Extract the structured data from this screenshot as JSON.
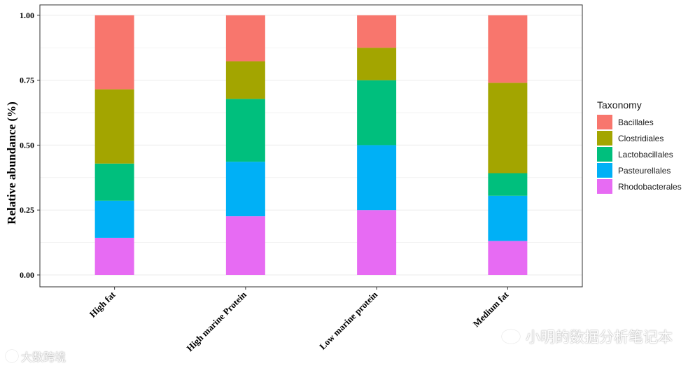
{
  "chart_data": {
    "type": "bar",
    "stacked": true,
    "categories": [
      "High fat",
      "High marine Protein",
      "Low marine protein",
      "Medium fat"
    ],
    "series": [
      {
        "name": "Rhodobacterales",
        "color": "#E76BF3",
        "values": [
          0.143,
          0.226,
          0.25,
          0.131
        ]
      },
      {
        "name": "Pasteurellales",
        "color": "#00B0F6",
        "values": [
          0.143,
          0.21,
          0.25,
          0.174
        ]
      },
      {
        "name": "Lactobacillales",
        "color": "#00BF7D",
        "values": [
          0.143,
          0.242,
          0.25,
          0.087
        ]
      },
      {
        "name": "Clostridiales",
        "color": "#A3A500",
        "values": [
          0.286,
          0.145,
          0.125,
          0.348
        ]
      },
      {
        "name": "Bacillales",
        "color": "#F8766D",
        "values": [
          0.285,
          0.177,
          0.125,
          0.26
        ]
      }
    ],
    "xlabel": "",
    "ylabel": "Relative abundance (%)",
    "ylim": [
      0,
      1.04
    ],
    "yticks": [
      "0.00",
      "0.25",
      "0.50",
      "0.75",
      "1.00"
    ],
    "ytick_values": [
      0,
      0.25,
      0.5,
      0.75,
      1.0
    ],
    "grid": true,
    "legend": {
      "title": "Taxonomy",
      "placement": "right",
      "entries": [
        "Bacillales",
        "Clostridiales",
        "Lactobacillales",
        "Pasteurellales",
        "Rhodobacterales"
      ]
    }
  },
  "watermarks": {
    "right": "小明的数据分析笔记本",
    "left": "大数跨境"
  }
}
